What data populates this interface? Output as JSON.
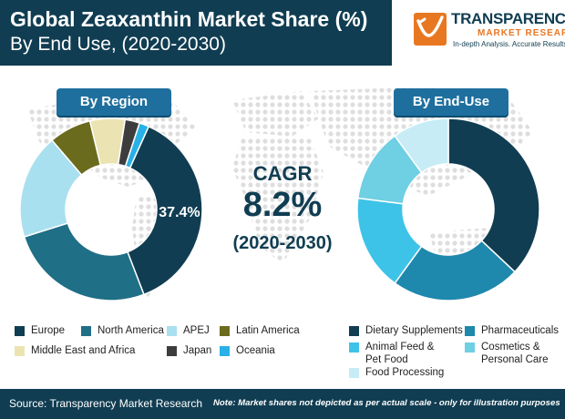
{
  "title": {
    "line1": "Global Zeaxanthin Market Share (%)",
    "line2": "By End Use, (2020-2030)"
  },
  "logo": {
    "name": "TRANSPARENCY",
    "sub": "MARKET RESEARCH",
    "tagline": "In-depth Analysis. Accurate Results"
  },
  "cagr": {
    "label": "CAGR",
    "value": "8.2%",
    "period": "(2020-2030)"
  },
  "chart_data": [
    {
      "type": "pie",
      "title": "By Region",
      "donut": true,
      "categories": [
        "Europe",
        "North America",
        "APEJ",
        "Latin America",
        "Middle East and Africa",
        "Japan",
        "Oceania"
      ],
      "values": [
        37.4,
        26.0,
        18.6,
        7.5,
        6.2,
        2.6,
        1.7
      ],
      "colors": [
        "#103d52",
        "#1f6f86",
        "#a9e0f0",
        "#6b6b1e",
        "#ebe3b2",
        "#3d3d3d",
        "#28b1e6"
      ],
      "data_labels": [
        "37.4%"
      ]
    },
    {
      "type": "pie",
      "title": "By End-Use",
      "donut": true,
      "categories": [
        "Dietary Supplements",
        "Pharmaceuticals",
        "Animal Feed & Pet Food",
        "Cosmetics & Personal Care",
        "Food Processing"
      ],
      "values": [
        37.0,
        23.0,
        17.0,
        13.0,
        10.0
      ],
      "colors": [
        "#103d52",
        "#1e88ad",
        "#3ec3e8",
        "#6fcfe3",
        "#c7ecf6"
      ]
    }
  ],
  "legend_region": [
    {
      "label": "Europe",
      "color": "#103d52"
    },
    {
      "label": "North America",
      "color": "#1f6f86"
    },
    {
      "label": "APEJ",
      "color": "#a9e0f0"
    },
    {
      "label": "Latin America",
      "color": "#6b6b1e"
    },
    {
      "label": "Middle East and Africa",
      "color": "#ebe3b2"
    },
    {
      "label": "Japan",
      "color": "#3d3d3d"
    },
    {
      "label": "Oceania",
      "color": "#28b1e6"
    }
  ],
  "legend_enduse": [
    {
      "label": "Dietary Supplements",
      "color": "#103d52"
    },
    {
      "label": "Pharmaceuticals",
      "color": "#1e88ad"
    },
    {
      "label": "Animal Feed & Pet Food",
      "color": "#3ec3e8"
    },
    {
      "label": "Cosmetics & Personal Care",
      "color": "#6fcfe3"
    },
    {
      "label": "Food Processing",
      "color": "#c7ecf6"
    }
  ],
  "footer": {
    "source": "Source: Transparency Market Research",
    "note": "Note: Market shares not depicted as per actual scale - only for illustration purposes"
  }
}
